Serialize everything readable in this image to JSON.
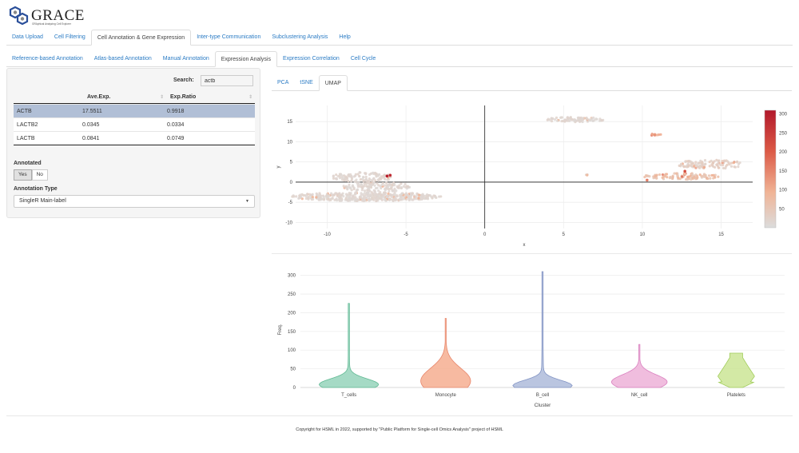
{
  "app": {
    "title": "GRACE",
    "subtitle": "GRAphical Analyzing Cell Explorer"
  },
  "main_tabs": [
    "Data Upload",
    "Cell Filtering",
    "Cell Annotation & Gene Expression",
    "Inter-type Communication",
    "Subclustering Analysis",
    "Help"
  ],
  "main_active": 2,
  "sub_tabs": [
    "Reference-based Annotation",
    "Atlas-based Annotation",
    "Manual Annotation",
    "Expression Analysis",
    "Expression Correlation",
    "Cell Cycle"
  ],
  "sub_active": 3,
  "sidebar": {
    "search_label": "Search:",
    "search_value": "actb",
    "table": {
      "columns": [
        "",
        "Ave.Exp.",
        "Exp.Ratio"
      ],
      "rows": [
        [
          "ACTB",
          "17.5511",
          "0.9918"
        ],
        [
          "LACTB2",
          "0.0345",
          "0.0334"
        ],
        [
          "LACTB",
          "0.0841",
          "0.0749"
        ]
      ],
      "selected_row": 0
    },
    "annotated_label": "Annotated",
    "annotated_options": [
      "Yes",
      "No"
    ],
    "annotated_selected": "Yes",
    "annotation_type_label": "Annotation Type",
    "annotation_type_value": "SingleR Main-label"
  },
  "plot_tabs": [
    "PCA",
    "tSNE",
    "UMAP"
  ],
  "plot_active": 2,
  "colors": {
    "accent": "#2a7bc4",
    "selected_row": "#b1bfd6",
    "scale_high": "#b2182b",
    "scale_low": "#dcdcdc"
  },
  "umap": {
    "xlabel": "x",
    "ylabel": "y",
    "xlim": [
      -12,
      17
    ],
    "ylim": [
      -11.5,
      19
    ],
    "xticks": [
      -10,
      -5,
      0,
      5,
      10,
      15
    ],
    "yticks": [
      -10,
      -5,
      0,
      5,
      10,
      15
    ],
    "colorbar": {
      "min": 0,
      "max": 310,
      "ticks": [
        50,
        100,
        150,
        200,
        250,
        300
      ]
    },
    "clusters": [
      {
        "cx": -7.5,
        "cy": -3.6,
        "rx": 4.8,
        "ry": 1.1,
        "n": 420,
        "level": 15
      },
      {
        "cx": -6.8,
        "cy": -1.2,
        "rx": 2.2,
        "ry": 1.2,
        "n": 120,
        "level": 15
      },
      {
        "cx": -7.8,
        "cy": 1.2,
        "rx": 1.9,
        "ry": 1.3,
        "n": 110,
        "level": 18
      },
      {
        "cx": 5.7,
        "cy": 15.5,
        "rx": 1.9,
        "ry": 0.6,
        "n": 90,
        "level": 15
      },
      {
        "cx": 10.8,
        "cy": 11.8,
        "rx": 0.4,
        "ry": 0.25,
        "n": 10,
        "level": 120
      },
      {
        "cx": 12.5,
        "cy": 1.4,
        "rx": 2.4,
        "ry": 0.8,
        "n": 110,
        "level": 70
      },
      {
        "cx": 14.3,
        "cy": 4.4,
        "rx": 2.2,
        "ry": 1.1,
        "n": 110,
        "level": 30
      },
      {
        "cx": 6.5,
        "cy": 1.8,
        "rx": 0.15,
        "ry": 0.15,
        "n": 3,
        "level": 60
      }
    ],
    "hot_points": [
      [
        -6.2,
        1.5,
        300
      ],
      [
        -6.0,
        1.7,
        280
      ],
      [
        12.7,
        2.7,
        220
      ],
      [
        10.3,
        0.5,
        160
      ]
    ]
  },
  "violin": {
    "xlabel": "Cluster",
    "ylabel": "Freq.",
    "ylim": [
      0,
      310
    ],
    "yticks": [
      0,
      50,
      100,
      150,
      200,
      250,
      300
    ],
    "categories": [
      "T_cells",
      "Monocyte",
      "B_cell",
      "NK_cell",
      "Platelets"
    ],
    "colors": [
      "#8fd1b6",
      "#f5a98a",
      "#a9b6d8",
      "#ecacd6",
      "#c8e48f"
    ],
    "strokes": [
      "#5fb993",
      "#e8866b",
      "#8294c4",
      "#d97fbf",
      "#a2cd5c"
    ],
    "max": [
      225,
      185,
      310,
      115,
      92
    ],
    "mode": [
      8,
      18,
      5,
      15,
      40
    ],
    "body_width": [
      0.62,
      0.52,
      0.62,
      0.58,
      0.38
    ],
    "body_height": [
      32,
      70,
      30,
      40,
      45
    ]
  },
  "footer": "Copyright for HSML in 2022, supported by \"Public Platform for Single-cell Omics Analysis\" project of HSML"
}
